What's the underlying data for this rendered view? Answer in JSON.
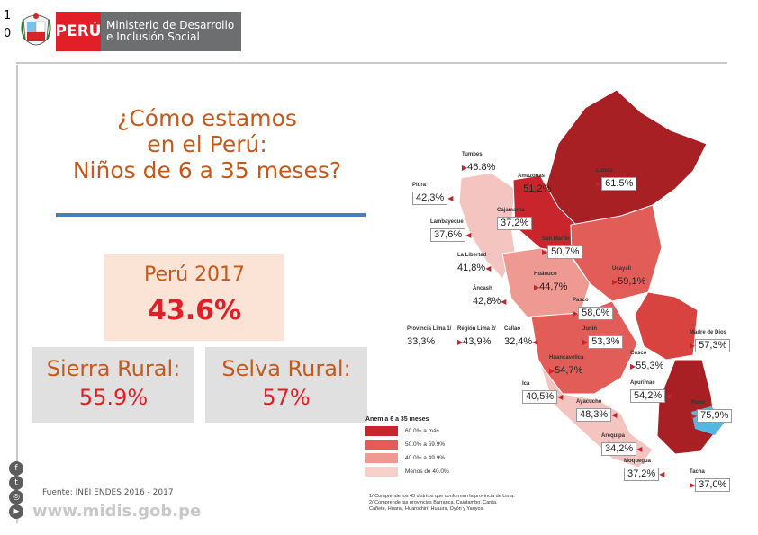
{
  "slide": {
    "number_line1": "1",
    "number_line2": "0"
  },
  "header": {
    "brand_short": "PERÚ",
    "ministry_line1": "Ministerio de Desarrollo",
    "ministry_line2": "e Inclusión Social"
  },
  "title": {
    "line1": "¿Cómo estamos",
    "line2": "en el Perú:",
    "line3": "Niños de 6 a 35 meses?"
  },
  "peru": {
    "label": "Perú 2017",
    "value": "43.6%"
  },
  "regions": [
    {
      "label": "Sierra Rural:",
      "value": "55.9%"
    },
    {
      "label": "Selva Rural:",
      "value": "57%"
    }
  ],
  "social": [
    {
      "icon": "facebook-icon",
      "glyph": "f"
    },
    {
      "icon": "twitter-icon",
      "glyph": "t"
    },
    {
      "icon": "instagram-icon",
      "glyph": "◎"
    },
    {
      "icon": "youtube-icon",
      "glyph": "▶"
    }
  ],
  "footer": {
    "source": "Fuente: INEI ENDES 2016 - 2017",
    "website": "www.midis.gob.pe"
  },
  "map": {
    "labels": [
      {
        "name": "Tumbes",
        "value": "46.8%"
      },
      {
        "name": "Piura",
        "value": "42,3%"
      },
      {
        "name": "Amazonas",
        "value": "51,2%"
      },
      {
        "name": "Loreto",
        "value": "61.5%"
      },
      {
        "name": "Lambayeque",
        "value": "37,6%"
      },
      {
        "name": "Cajamarca",
        "value": "37,2%"
      },
      {
        "name": "San Martín",
        "value": "50,7%"
      },
      {
        "name": "La Libertad",
        "value": "41,8%"
      },
      {
        "name": "Huánuco",
        "value": "44,7%"
      },
      {
        "name": "Ucayali",
        "value": "59,1%"
      },
      {
        "name": "Áncash",
        "value": "42,8%"
      },
      {
        "name": "Pasco",
        "value": "58,0%"
      },
      {
        "name": "Provincia Lima 1/",
        "value": "33,3%"
      },
      {
        "name": "Región Lima 2/",
        "value": "43,9%"
      },
      {
        "name": "Callao",
        "value": "32,4%"
      },
      {
        "name": "Junín",
        "value": "53,3%"
      },
      {
        "name": "Madre de Dios",
        "value": "57,3%"
      },
      {
        "name": "Huancavelica",
        "value": "54,7%"
      },
      {
        "name": "Cusco",
        "value": "55,3%"
      },
      {
        "name": "Ica",
        "value": "40,5%"
      },
      {
        "name": "Apurímac",
        "value": "54,2%"
      },
      {
        "name": "Ayacucho",
        "value": "48,3%"
      },
      {
        "name": "Puno",
        "value": "75,9%"
      },
      {
        "name": "Arequipa",
        "value": "34,2%"
      },
      {
        "name": "Moquegua",
        "value": "37,2%"
      },
      {
        "name": "Tacna",
        "value": "37,0%"
      }
    ],
    "legend": {
      "title": "Anemia 6 a 35 meses",
      "items": [
        {
          "color": "#c8262c",
          "text": "60.0% a más"
        },
        {
          "color": "#e25d57",
          "text": "50.0% a 59.9%"
        },
        {
          "color": "#ee9a92",
          "text": "40.0% a 49.9%"
        },
        {
          "color": "#f7cfcb",
          "text": "Menos de 40.0%"
        }
      ]
    },
    "notes": [
      "1/ Comprende los 43 distritos que conforman la provincia de Lima.",
      "2/ Comprende las provincias Barranca, Cajatambo, Canta,",
      "Cañete, Huaral, Huarochirí, Huaura, Oyón y Yauyos."
    ]
  }
}
